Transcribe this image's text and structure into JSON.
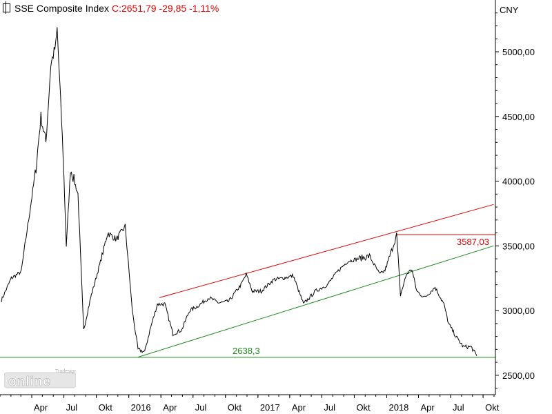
{
  "header": {
    "instrument": "SSE Composite Index",
    "last_label": "C:2651,79 -29,85 -1,11%"
  },
  "axis": {
    "currency": "CNY"
  },
  "logo": {
    "text": "online",
    "small": "Tradesignal®"
  },
  "colors": {
    "price": "#000000",
    "upper_line": "#e00000",
    "lower_line": "#1f8a1f",
    "support_line": "#1f8a1f",
    "grid": "#c8c8c8"
  },
  "chart_data": {
    "type": "line",
    "title": "SSE Composite Index",
    "ylim": [
      2350,
      5400
    ],
    "y_ticks": [
      "5000,00",
      "4500,00",
      "4000,00",
      "3500,00",
      "3000,00",
      "2500,00"
    ],
    "y_tick_values": [
      5000,
      4500,
      4000,
      3500,
      3000,
      2500
    ],
    "x_tick_labels": [
      "Apr",
      "Jul",
      "Okt",
      "2016",
      "Apr",
      "Jul",
      "Okt",
      "2017",
      "Apr",
      "Jul",
      "Okt",
      "2018",
      "Apr",
      "Jul",
      "Okt"
    ],
    "x_tick_dates": [
      "2015-04",
      "2015-07",
      "2015-10",
      "2016-01",
      "2016-04",
      "2016-07",
      "2016-10",
      "2017-01",
      "2017-04",
      "2017-07",
      "2017-10",
      "2018-01",
      "2018-04",
      "2018-07",
      "2018-10"
    ],
    "series": [
      {
        "x": [
          "2015-01-05",
          "2015-02-02",
          "2015-03-02",
          "2015-03-23",
          "2015-04-13",
          "2015-04-27",
          "2015-05-11",
          "2015-05-25",
          "2015-06-08",
          "2015-06-12",
          "2015-06-29",
          "2015-07-08",
          "2015-07-20",
          "2015-08-10",
          "2015-08-26",
          "2015-09-15",
          "2015-10-15",
          "2015-11-02",
          "2015-11-27",
          "2015-12-22",
          "2016-01-11",
          "2016-01-27",
          "2016-02-15",
          "2016-03-01",
          "2016-03-22",
          "2016-04-12",
          "2016-05-05",
          "2016-05-30",
          "2016-06-21",
          "2016-07-12",
          "2016-08-15",
          "2016-09-12",
          "2016-10-10",
          "2016-11-14",
          "2016-11-29",
          "2016-12-16",
          "2017-01-10",
          "2017-02-15",
          "2017-03-14",
          "2017-04-11",
          "2017-05-10",
          "2017-06-13",
          "2017-07-17",
          "2017-08-14",
          "2017-09-12",
          "2017-10-11",
          "2017-11-13",
          "2017-12-12",
          "2017-12-27",
          "2018-01-12",
          "2018-01-29",
          "2018-02-09",
          "2018-02-26",
          "2018-03-13",
          "2018-03-27",
          "2018-04-18",
          "2018-05-18",
          "2018-06-12",
          "2018-06-25",
          "2018-07-16",
          "2018-08-06",
          "2018-08-28",
          "2018-09-13"
        ],
        "y": [
          3080,
          3250,
          3300,
          3700,
          4100,
          4500,
          4300,
          4900,
          5050,
          5178,
          4200,
          3500,
          4100,
          3900,
          2850,
          3100,
          3400,
          3600,
          3550,
          3650,
          3000,
          2700,
          2680,
          2850,
          3050,
          3050,
          2820,
          2850,
          3000,
          3030,
          3100,
          3060,
          3070,
          3200,
          3280,
          3150,
          3150,
          3240,
          3250,
          3270,
          3050,
          3150,
          3200,
          3300,
          3380,
          3400,
          3420,
          3280,
          3310,
          3440,
          3587,
          3120,
          3280,
          3320,
          3150,
          3100,
          3180,
          3050,
          2900,
          2800,
          2720,
          2720,
          2650
        ]
      }
    ],
    "annotations": [
      {
        "text": "3587,03",
        "value": 3587.03
      },
      {
        "text": "2638,3",
        "value": 2638.3
      }
    ],
    "trendlines": {
      "upper": {
        "from": [
          "2016-03-28",
          3100
        ],
        "to": [
          "2018-10-31",
          3820
        ]
      },
      "lower": {
        "from": [
          "2016-01-27",
          2640
        ],
        "to": [
          "2018-10-31",
          3500
        ]
      }
    },
    "grid": false
  }
}
